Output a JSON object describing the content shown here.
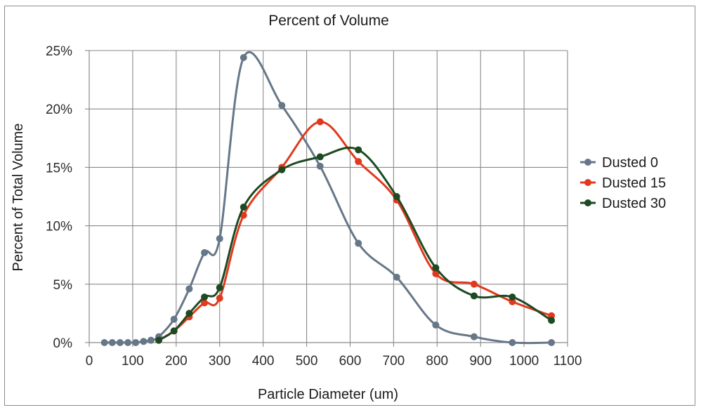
{
  "chart_data": {
    "type": "line",
    "title": "Percent of Volume",
    "xlabel": "Particle Diameter (um)",
    "ylabel": "Percent of Total Volume",
    "xlim": [
      0,
      1100
    ],
    "ylim": [
      0,
      25
    ],
    "x_ticks": [
      "0",
      "100",
      "200",
      "300",
      "400",
      "500",
      "600",
      "700",
      "800",
      "900",
      "1000",
      "1100"
    ],
    "y_ticks": [
      "0%",
      "5%",
      "10%",
      "15%",
      "20%",
      "25%"
    ],
    "grid": true,
    "smooth": true,
    "legend_position": "right",
    "series": [
      {
        "name": "Dusted 0",
        "color": "#667788",
        "points": [
          [
            35,
            0
          ],
          [
            53,
            0
          ],
          [
            71,
            0
          ],
          [
            89,
            0
          ],
          [
            107,
            0
          ],
          [
            125,
            0.1
          ],
          [
            142,
            0.2
          ],
          [
            160,
            0.5
          ],
          [
            195,
            2.0
          ],
          [
            230,
            4.6
          ],
          [
            265,
            7.7
          ],
          [
            300,
            8.9
          ],
          [
            355,
            24.4
          ],
          [
            443,
            20.3
          ],
          [
            531,
            15.1
          ],
          [
            619,
            8.5
          ],
          [
            707,
            5.6
          ],
          [
            797,
            1.5
          ],
          [
            885,
            0.5
          ],
          [
            973,
            0
          ],
          [
            1063,
            0
          ]
        ]
      },
      {
        "name": "Dusted 15",
        "color": "#e03a1e",
        "points": [
          [
            160,
            0.2
          ],
          [
            195,
            1.0
          ],
          [
            230,
            2.2
          ],
          [
            265,
            3.4
          ],
          [
            300,
            3.8
          ],
          [
            355,
            10.9
          ],
          [
            443,
            15.0
          ],
          [
            531,
            18.9
          ],
          [
            619,
            15.5
          ],
          [
            707,
            12.2
          ],
          [
            797,
            5.9
          ],
          [
            885,
            5.0
          ],
          [
            973,
            3.5
          ],
          [
            1063,
            2.3
          ]
        ]
      },
      {
        "name": "Dusted 30",
        "color": "#1d4a22",
        "points": [
          [
            160,
            0.2
          ],
          [
            195,
            1.0
          ],
          [
            230,
            2.5
          ],
          [
            265,
            3.9
          ],
          [
            300,
            4.7
          ],
          [
            355,
            11.6
          ],
          [
            443,
            14.8
          ],
          [
            531,
            15.9
          ],
          [
            619,
            16.5
          ],
          [
            707,
            12.5
          ],
          [
            797,
            6.4
          ],
          [
            885,
            4.0
          ],
          [
            973,
            3.9
          ],
          [
            1063,
            1.9
          ]
        ]
      }
    ]
  }
}
